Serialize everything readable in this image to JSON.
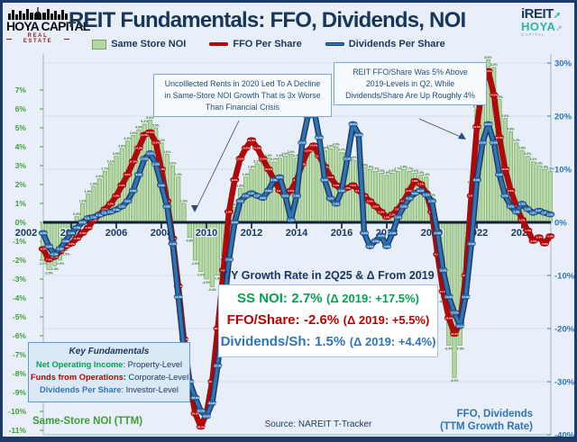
{
  "header": {
    "title": "REIT Fundamentals: FFO, Dividends, NOI",
    "logo": {
      "name": "HOYA CAPITAL",
      "subtitle": "REAL ESTATE"
    },
    "ireit": {
      "line1": "iREIT",
      "line2": "HOYA",
      "line3": "CAPITAL"
    }
  },
  "legend": {
    "items": [
      {
        "label": "Same Store NOI",
        "swatch": "green-bar-swatch",
        "color": "#b5d8a3"
      },
      {
        "label": "FFO Per Share",
        "swatch": "red-line-swatch",
        "color": "#c00000"
      },
      {
        "label": "Dividends Per Share",
        "swatch": "blue-line-swatch",
        "color": "#2e75b6"
      }
    ]
  },
  "annotations": {
    "noi": {
      "lines": [
        "Uncolllected Rents in 2020 Led To A Decline",
        "in Same-Store NOI Growth That is 3x Worse",
        "Than Financial Crisis"
      ]
    },
    "ffo": {
      "lines": [
        "REIT FFO/Share Was 5% Above",
        "2019-Levels in Q2, While",
        "Dividends/Share Are Up Roughly 4%"
      ]
    }
  },
  "stats": {
    "title": "Y/Y Growth Rate in 2Q25 & Δ From 2019",
    "rows": [
      {
        "label": "SS NOI:",
        "value": "2.7%",
        "delta": "(Δ 2019: +17.5%)",
        "color": "#00a550"
      },
      {
        "label": "FFO/Share:",
        "value": "-2.6%",
        "delta": "(Δ 2019: +5.5%)",
        "color": "#c00000"
      },
      {
        "label": "Dividends/Sh:",
        "value": "1.5%",
        "delta": "(Δ 2019: +4.4%)",
        "color": "#2e75b6"
      }
    ]
  },
  "key_box": {
    "title": "Key Fundamentals",
    "rows": [
      {
        "term": "Net Operating Income",
        "rest": ": Property-Level",
        "color": "#00a550"
      },
      {
        "term": "Funds from Operations:",
        "rest": " Corporate-Level",
        "color": "#c00000"
      },
      {
        "term": "Dividends Per Share",
        "rest": ": Investor-Level",
        "color": "#2e75b6"
      }
    ]
  },
  "footer": {
    "noi_axis_label": "Same-Store NOI (TTM)",
    "source": "Source: NAREIT T-Tracker",
    "ffo_axis_label_line1": "FFO, Dividends",
    "ffo_axis_label_line2": "(TTM Growth Rate)"
  },
  "colors": {
    "navy": "#16365c",
    "bar_green_fill": "#b5d8a3",
    "bar_green_edge": "#71a657",
    "noi_label_green": "#2f6b22",
    "axis_green": "#3f9e35",
    "red": "#c00000",
    "red_edge": "#8c1a1c",
    "blue": "#2e75b6",
    "blue_edge": "#1f3864",
    "zero_line": "#0c1f3d",
    "teal": "#2fb3a9",
    "logo_red": "#8f1d1f"
  },
  "chart_data": {
    "type": "bar+line combo (quarterly TTM Y/Y growth)",
    "title": "REIT Fundamentals: FFO, Dividends, NOI",
    "x_start": 2002.75,
    "x_step": 0.25,
    "x_ticks": [
      2002,
      2004,
      2006,
      2008,
      2010,
      2012,
      2014,
      2016,
      2018,
      2020,
      2022,
      2024
    ],
    "left_axis": {
      "min": -11,
      "max": 7,
      "step": 1,
      "unit": "%",
      "label": "Same-Store NOI (TTM)"
    },
    "right_axis": {
      "min": -40,
      "max": 30,
      "step": 10,
      "unit": "%",
      "label": "FFO, Dividends (TTM Growth Rate)"
    },
    "grid": "faint horizontal at right-axis ticks",
    "legend_position": "top center",
    "series": [
      {
        "name": "Same Store NOI",
        "type": "bar",
        "axis": "left",
        "color": "#b5d8a3",
        "edge": "#71a657",
        "values": [
          -2.0,
          -2.5,
          -2.3,
          -2.0,
          -1.5,
          -0.6,
          0.3,
          1.0,
          1.5,
          1.9,
          2.3,
          2.7,
          3.1,
          3.5,
          3.9,
          4.3,
          4.6,
          4.9,
          5.2,
          5.4,
          5.0,
          4.2,
          3.6,
          3.0,
          2.4,
          1.0,
          -0.8,
          -2.0,
          -2.6,
          -3.0,
          -3.4,
          -2.8,
          -1.8,
          -0.5,
          0.8,
          1.8,
          2.4,
          2.8,
          3.1,
          3.3,
          3.4,
          3.2,
          3.4,
          3.5,
          3.6,
          3.4,
          3.5,
          3.7,
          3.8,
          3.7,
          3.8,
          3.9,
          4.0,
          3.7,
          3.5,
          3.3,
          3.1,
          2.9,
          2.8,
          2.7,
          2.6,
          2.5,
          2.6,
          2.7,
          2.8,
          2.7,
          2.6,
          2.5,
          2.4,
          1.3,
          -1.5,
          -4.0,
          -6.5,
          -8.2,
          -6.5,
          -3.0,
          2.0,
          6.0,
          8.0,
          8.6,
          8.2,
          6.5,
          5.5,
          4.8,
          4.2,
          3.8,
          3.5,
          3.2,
          3.0,
          2.8,
          2.7
        ]
      },
      {
        "name": "FFO Per Share",
        "type": "line",
        "axis": "right",
        "color": "#c00000",
        "edge": "#8c1a1c",
        "values": [
          -5.0,
          -7.0,
          -6.5,
          -5.5,
          -4.5,
          -4.0,
          -3.0,
          -2.0,
          -1.0,
          0.5,
          1.5,
          2.5,
          3.5,
          5.0,
          7.0,
          9.0,
          11.5,
          14.0,
          16.5,
          17.0,
          15.0,
          10.0,
          4.0,
          -3.0,
          -12.0,
          -22.0,
          -30.0,
          -36.0,
          -38.5,
          -36.0,
          -30.0,
          -20.0,
          -9.0,
          2.0,
          8.0,
          12.0,
          14.0,
          15.5,
          14.0,
          12.0,
          10.0,
          8.0,
          6.0,
          5.0,
          6.0,
          8.0,
          11.0,
          13.5,
          14.5,
          12.5,
          10.5,
          8.5,
          7.0,
          6.0,
          6.5,
          7.0,
          6.0,
          5.0,
          4.0,
          3.0,
          2.0,
          1.0,
          1.5,
          2.5,
          4.0,
          6.0,
          7.8,
          7.2,
          5.5,
          2.0,
          -6.0,
          -13.0,
          -18.0,
          -21.0,
          -19.0,
          -10.0,
          5.0,
          18.0,
          26.0,
          28.5,
          24.0,
          16.0,
          10.0,
          6.0,
          3.0,
          0.5,
          -1.5,
          -3.5,
          -2.8,
          -4.0,
          -2.6
        ]
      },
      {
        "name": "Dividends Per Share",
        "type": "line",
        "axis": "right",
        "color": "#2e75b6",
        "edge": "#1f3864",
        "values": [
          -2.0,
          -4.5,
          -6.0,
          -5.0,
          -3.5,
          -2.0,
          -1.0,
          0.0,
          0.8,
          1.0,
          1.4,
          1.8,
          2.0,
          2.4,
          3.0,
          4.0,
          6.0,
          9.0,
          12.0,
          13.0,
          11.0,
          7.0,
          3.0,
          -4.0,
          -14.0,
          -24.0,
          -30.0,
          -33.0,
          -35.5,
          -36.5,
          -34.0,
          -27.0,
          -17.0,
          -7.0,
          0.0,
          4.0,
          5.0,
          5.5,
          5.0,
          4.6,
          6.0,
          8.0,
          8.5,
          5.0,
          0.5,
          5.0,
          15.0,
          20.0,
          21.5,
          16.0,
          8.0,
          4.5,
          3.5,
          6.0,
          12.0,
          18.5,
          16.5,
          -2.0,
          -4.5,
          -3.5,
          -2.5,
          -4.5,
          -2.0,
          1.0,
          3.0,
          4.5,
          5.5,
          6.0,
          5.2,
          4.0,
          -2.0,
          -9.0,
          -14.0,
          -17.0,
          -19.5,
          -14.0,
          -4.0,
          8.0,
          15.0,
          18.5,
          15.0,
          9.0,
          5.0,
          3.0,
          2.0,
          3.5,
          2.5,
          1.8,
          2.2,
          1.8,
          1.5
        ]
      }
    ]
  }
}
